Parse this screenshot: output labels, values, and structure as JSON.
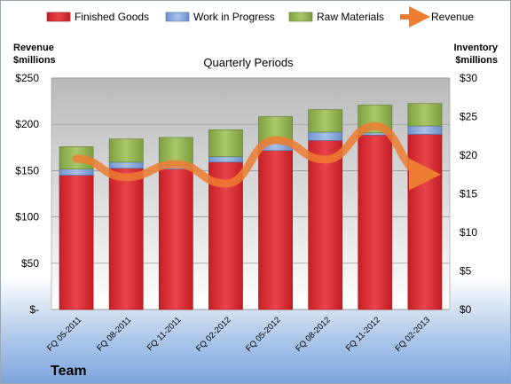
{
  "chart_data": {
    "type": "bar",
    "subtitle": "Quarterly Periods",
    "left_axis_title": [
      "Revenue",
      "$millions"
    ],
    "right_axis_title": [
      "Inventory",
      "$millions"
    ],
    "categories": [
      "FQ 05-2011",
      "FQ 08-2011",
      "FQ 11-2011",
      "FQ 02-2012",
      "FQ 05-2012",
      "FQ 08-2012",
      "FQ 11-2012",
      "FQ 02-2013"
    ],
    "series": [
      {
        "name": "Finished Goods",
        "axis": "right",
        "stacked": true,
        "color": "#d9262e",
        "values": [
          17.4,
          18.3,
          18.2,
          19.1,
          20.6,
          21.9,
          22.6,
          22.7
        ]
      },
      {
        "name": "Work in Progress",
        "axis": "right",
        "stacked": true,
        "color": "#7d9fd6",
        "values": [
          0.8,
          0.8,
          0.5,
          0.7,
          1.0,
          1.1,
          0.3,
          1.1
        ]
      },
      {
        "name": "Raw Materials",
        "axis": "right",
        "stacked": true,
        "color": "#8fb04f",
        "values": [
          2.9,
          3.0,
          3.6,
          3.5,
          3.4,
          2.9,
          3.6,
          2.9
        ]
      },
      {
        "name": "Revenue",
        "axis": "left",
        "type": "line",
        "color": "#f08a33",
        "values": [
          163,
          143,
          157,
          136,
          183,
          162,
          198,
          146
        ]
      }
    ],
    "left_axis": {
      "min": 0,
      "max": 250,
      "step": 50,
      "tick_labels": [
        "$-",
        "$50",
        "$100",
        "$150",
        "$200",
        "$250"
      ]
    },
    "right_axis": {
      "min": 0,
      "max": 30,
      "step": 5,
      "tick_labels": [
        "$0",
        "$5",
        "$10",
        "$15",
        "$20",
        "$25",
        "$30"
      ]
    },
    "grid": true,
    "legend_position": "top"
  },
  "brand": "Team"
}
